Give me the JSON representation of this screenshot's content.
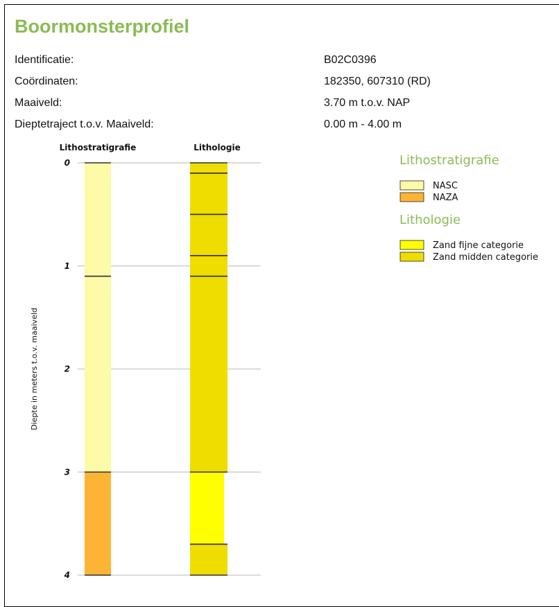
{
  "title": "Boormonsterprofiel",
  "info": [
    {
      "label": "Identificatie:",
      "value": "B02C0396"
    },
    {
      "label": "Coördinaten:",
      "value": "182350, 607310 (RD)"
    },
    {
      "label": "Maaiveld:",
      "value": "3.70 m t.o.v. NAP"
    },
    {
      "label": "Dieptetraject t.o.v. Maaiveld:",
      "value": "0.00 m - 4.00 m"
    }
  ],
  "chart_data": {
    "type": "bar",
    "ylabel": "Diepte in meters t.o.v. maaiveld",
    "ylim": [
      0,
      4
    ],
    "yticks": [
      "0",
      "1",
      "2",
      "3",
      "4"
    ],
    "columns": [
      {
        "name": "Lithostratigrafie",
        "intervals": [
          {
            "from": 0.0,
            "to": 1.1,
            "unit": "NASC"
          },
          {
            "from": 1.1,
            "to": 3.0,
            "unit": "NASC"
          },
          {
            "from": 3.0,
            "to": 4.0,
            "unit": "NAZA"
          }
        ]
      },
      {
        "name": "Lithologie",
        "intervals": [
          {
            "from": 0.0,
            "to": 0.1,
            "unit": "Zand midden categorie"
          },
          {
            "from": 0.1,
            "to": 0.5,
            "unit": "Zand midden categorie"
          },
          {
            "from": 0.5,
            "to": 0.9,
            "unit": "Zand midden categorie"
          },
          {
            "from": 0.9,
            "to": 1.1,
            "unit": "Zand midden categorie"
          },
          {
            "from": 1.1,
            "to": 3.0,
            "unit": "Zand midden categorie"
          },
          {
            "from": 3.0,
            "to": 3.7,
            "unit": "Zand fijne categorie"
          },
          {
            "from": 3.7,
            "to": 4.0,
            "unit": "Zand midden categorie"
          }
        ]
      }
    ],
    "legends": [
      {
        "title": "Lithostratigrafie",
        "items": [
          {
            "label": "NASC",
            "color": "#fdfaa8"
          },
          {
            "label": "NAZA",
            "color": "#fdb434"
          }
        ]
      },
      {
        "title": "Lithologie",
        "items": [
          {
            "label": "Zand fijne categorie",
            "color": "#ffff00"
          },
          {
            "label": "Zand midden categorie",
            "color": "#f0dd00"
          }
        ]
      }
    ],
    "grid": true,
    "legend_position": "right"
  }
}
